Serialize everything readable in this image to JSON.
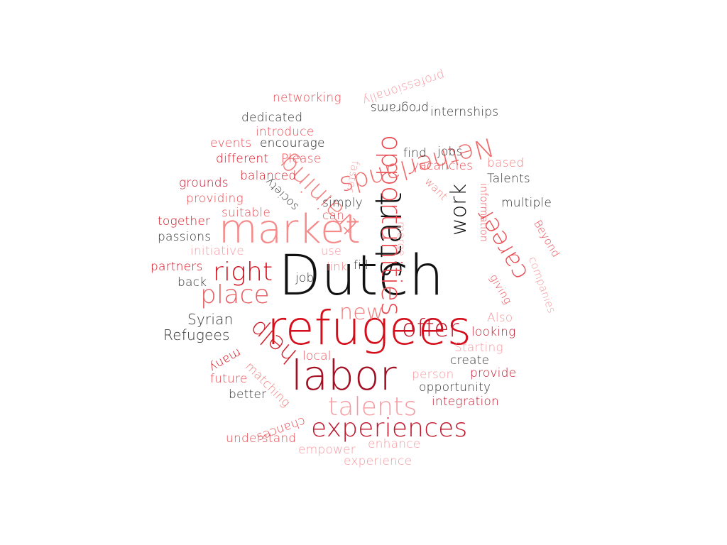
{
  "words": [
    {
      "text": "Dutch",
      "color": "#111111"
    },
    {
      "text": "refugees",
      "color": "#d40e1b"
    },
    {
      "text": "labor",
      "color": "#a30f23"
    },
    {
      "text": "market",
      "color": "#f58a8a"
    },
    {
      "text": "start",
      "color": "#111111"
    },
    {
      "text": "opportunities",
      "color": "#e84a52"
    },
    {
      "text": "training",
      "color": "#f08080"
    },
    {
      "text": "Netherlands",
      "color": "#ef6a6a"
    },
    {
      "text": "career",
      "color": "#e84a52"
    },
    {
      "text": "experiences",
      "color": "#c0172c"
    },
    {
      "text": "talents",
      "color": "#f59aa0"
    },
    {
      "text": "right",
      "color": "#d40e1b"
    },
    {
      "text": "place",
      "color": "#e85b5f"
    },
    {
      "text": "help",
      "color": "#d01f2a"
    },
    {
      "text": "new",
      "color": "#f08080"
    },
    {
      "text": "offer",
      "color": "#c0172c"
    },
    {
      "text": "work",
      "color": "#111111"
    },
    {
      "text": "professionally",
      "color": "#f59aa0"
    },
    {
      "text": "networking",
      "color": "#e84a52"
    },
    {
      "text": "programs",
      "color": "#222222"
    },
    {
      "text": "internships",
      "color": "#333333"
    },
    {
      "text": "dedicated",
      "color": "#333333"
    },
    {
      "text": "introduce",
      "color": "#e84a52"
    },
    {
      "text": "encourage",
      "color": "#222222"
    },
    {
      "text": "events",
      "color": "#e84a52"
    },
    {
      "text": "different",
      "color": "#d40e1b"
    },
    {
      "text": "Please",
      "color": "#e84a52"
    },
    {
      "text": "balanced",
      "color": "#d01f2a"
    },
    {
      "text": "grounds",
      "color": "#c0172c"
    },
    {
      "text": "providing",
      "color": "#e84a52"
    },
    {
      "text": "together",
      "color": "#d40e1b"
    },
    {
      "text": "suitable",
      "color": "#e84a52"
    },
    {
      "text": "passions",
      "color": "#333333"
    },
    {
      "text": "initiative",
      "color": "#f59aa0"
    },
    {
      "text": "partners",
      "color": "#d40e1b"
    },
    {
      "text": "back",
      "color": "#333333"
    },
    {
      "text": "Syrian",
      "color": "#333333"
    },
    {
      "text": "Refugees",
      "color": "#333333"
    },
    {
      "text": "many",
      "color": "#d40e1b"
    },
    {
      "text": "matching",
      "color": "#f08080"
    },
    {
      "text": "future",
      "color": "#e84a52"
    },
    {
      "text": "better",
      "color": "#333333"
    },
    {
      "text": "chances",
      "color": "#e84a52"
    },
    {
      "text": "understand",
      "color": "#e84a52"
    },
    {
      "text": "empower",
      "color": "#f59aa0"
    },
    {
      "text": "enhance",
      "color": "#f59aa0"
    },
    {
      "text": "experience",
      "color": "#f59aa0"
    },
    {
      "text": "find",
      "color": "#333333"
    },
    {
      "text": "jobs",
      "color": "#333333"
    },
    {
      "text": "vacancies",
      "color": "#e84a52"
    },
    {
      "text": "based",
      "color": "#f08080"
    },
    {
      "text": "Talents",
      "color": "#333333"
    },
    {
      "text": "multiple",
      "color": "#333333"
    },
    {
      "text": "simply",
      "color": "#333333"
    },
    {
      "text": "can",
      "color": "#e84a52"
    },
    {
      "text": "society",
      "color": "#333333"
    },
    {
      "text": "faster",
      "color": "#f59aa0"
    },
    {
      "text": "want",
      "color": "#f08080"
    },
    {
      "text": "information",
      "color": "#e84a52"
    },
    {
      "text": "merge",
      "color": "#f59aa0"
    },
    {
      "text": "use",
      "color": "#f59aa0"
    },
    {
      "text": "link",
      "color": "#f08080"
    },
    {
      "text": "fill",
      "color": "#333333"
    },
    {
      "text": "job",
      "color": "#333333"
    },
    {
      "text": "Beyond",
      "color": "#e84a52"
    },
    {
      "text": "companies",
      "color": "#f59aa0"
    },
    {
      "text": "giving",
      "color": "#e84a52"
    },
    {
      "text": "Also",
      "color": "#f59aa0"
    },
    {
      "text": "looking",
      "color": "#c0172c"
    },
    {
      "text": "Starting",
      "color": "#f59aa0"
    },
    {
      "text": "local",
      "color": "#e84a52"
    },
    {
      "text": "create",
      "color": "#333333"
    },
    {
      "text": "person",
      "color": "#f59aa0"
    },
    {
      "text": "provide",
      "color": "#c0172c"
    },
    {
      "text": "opportunity",
      "color": "#333333"
    },
    {
      "text": "integration",
      "color": "#c0172c"
    }
  ]
}
